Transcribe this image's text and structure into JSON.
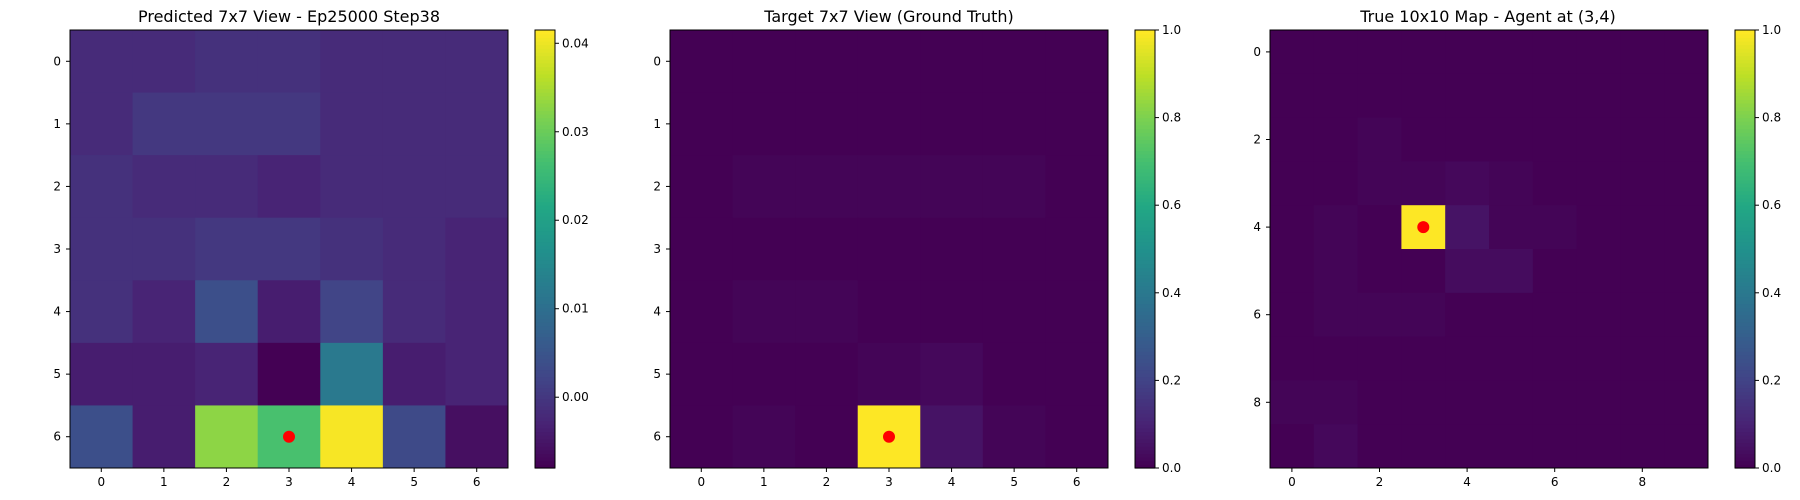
{
  "chart_data": [
    {
      "type": "heatmap",
      "title": "Predicted 7x7 View - Ep25000 Step38",
      "colormap": "viridis",
      "rows": 7,
      "cols": 7,
      "x_ticks": [
        0,
        1,
        2,
        3,
        4,
        5,
        6
      ],
      "y_ticks": [
        0,
        1,
        2,
        3,
        4,
        5,
        6
      ],
      "vmin": -0.008,
      "vmax": 0.0415,
      "colorbar_ticks": [
        {
          "v": 0.04,
          "label": "0.04"
        },
        {
          "v": 0.03,
          "label": "0.03"
        },
        {
          "v": 0.02,
          "label": "0.02"
        },
        {
          "v": 0.01,
          "label": "0.01"
        },
        {
          "v": 0.0,
          "label": "0.00"
        }
      ],
      "values": [
        [
          -0.002,
          -0.002,
          -0.001,
          -0.001,
          -0.002,
          -0.002,
          -0.002
        ],
        [
          -0.002,
          0.0,
          0.0,
          0.0,
          -0.002,
          -0.002,
          -0.002
        ],
        [
          -0.001,
          -0.002,
          -0.002,
          -0.003,
          -0.002,
          -0.002,
          -0.002
        ],
        [
          -0.001,
          -0.001,
          0.0,
          0.0,
          -0.001,
          -0.002,
          -0.003
        ],
        [
          -0.001,
          -0.003,
          0.004,
          -0.004,
          0.002,
          -0.002,
          -0.003
        ],
        [
          -0.004,
          -0.004,
          -0.003,
          -0.008,
          0.012,
          -0.004,
          -0.003
        ],
        [
          0.004,
          -0.004,
          0.033,
          0.027,
          0.041,
          0.003,
          -0.006
        ]
      ],
      "marker": {
        "row": 6,
        "col": 3,
        "color": "#ff0000"
      }
    },
    {
      "type": "heatmap",
      "title": "Target 7x7 View (Ground Truth)",
      "colormap": "viridis",
      "rows": 7,
      "cols": 7,
      "x_ticks": [
        0,
        1,
        2,
        3,
        4,
        5,
        6
      ],
      "y_ticks": [
        0,
        1,
        2,
        3,
        4,
        5,
        6
      ],
      "vmin": 0.0,
      "vmax": 1.0,
      "colorbar_ticks": [
        {
          "v": 1.0,
          "label": "1.0"
        },
        {
          "v": 0.8,
          "label": "0.8"
        },
        {
          "v": 0.6,
          "label": "0.6"
        },
        {
          "v": 0.4,
          "label": "0.4"
        },
        {
          "v": 0.2,
          "label": "0.2"
        },
        {
          "v": 0.0,
          "label": "0.0"
        }
      ],
      "values": [
        [
          0.0,
          0.0,
          0.0,
          0.0,
          0.0,
          0.0,
          0.0
        ],
        [
          0.0,
          0.0,
          0.0,
          0.0,
          0.0,
          0.0,
          0.0
        ],
        [
          0.0,
          0.01,
          0.01,
          0.01,
          0.01,
          0.01,
          0.0
        ],
        [
          0.0,
          0.0,
          0.0,
          0.0,
          0.0,
          0.0,
          0.0
        ],
        [
          0.0,
          0.01,
          0.01,
          0.0,
          0.0,
          0.0,
          0.0
        ],
        [
          0.0,
          0.0,
          0.0,
          0.01,
          0.02,
          0.0,
          0.0
        ],
        [
          0.0,
          0.01,
          0.0,
          1.0,
          0.05,
          0.01,
          0.0
        ]
      ],
      "marker": {
        "row": 6,
        "col": 3,
        "color": "#ff0000"
      }
    },
    {
      "type": "heatmap",
      "title": "True 10x10 Map - Agent at (3,4)",
      "colormap": "viridis",
      "rows": 10,
      "cols": 10,
      "x_ticks": [
        0,
        2,
        4,
        6,
        8
      ],
      "y_ticks": [
        0,
        2,
        4,
        6,
        8
      ],
      "vmin": 0.0,
      "vmax": 1.0,
      "colorbar_ticks": [
        {
          "v": 1.0,
          "label": "1.0"
        },
        {
          "v": 0.8,
          "label": "0.8"
        },
        {
          "v": 0.6,
          "label": "0.6"
        },
        {
          "v": 0.4,
          "label": "0.4"
        },
        {
          "v": 0.2,
          "label": "0.2"
        },
        {
          "v": 0.0,
          "label": "0.0"
        }
      ],
      "values": [
        [
          0.0,
          0.0,
          0.0,
          0.0,
          0.0,
          0.0,
          0.0,
          0.0,
          0.0,
          0.0
        ],
        [
          0.0,
          0.0,
          0.0,
          0.0,
          0.0,
          0.0,
          0.0,
          0.0,
          0.0,
          0.0
        ],
        [
          0.0,
          0.0,
          0.01,
          0.0,
          0.0,
          0.0,
          0.0,
          0.0,
          0.0,
          0.0
        ],
        [
          0.0,
          0.0,
          0.01,
          0.01,
          0.02,
          0.01,
          0.0,
          0.0,
          0.0,
          0.0
        ],
        [
          0.0,
          0.01,
          0.0,
          1.0,
          0.05,
          0.01,
          0.01,
          0.0,
          0.0,
          0.0
        ],
        [
          0.0,
          0.01,
          0.0,
          0.0,
          0.03,
          0.03,
          0.0,
          0.0,
          0.0,
          0.0
        ],
        [
          0.0,
          0.01,
          0.01,
          0.01,
          0.0,
          0.0,
          0.0,
          0.0,
          0.0,
          0.0
        ],
        [
          0.0,
          0.0,
          0.0,
          0.0,
          0.0,
          0.0,
          0.0,
          0.0,
          0.0,
          0.0
        ],
        [
          0.01,
          0.01,
          0.0,
          0.0,
          0.0,
          0.0,
          0.0,
          0.0,
          0.0,
          0.0
        ],
        [
          0.0,
          0.02,
          0.0,
          0.0,
          0.0,
          0.0,
          0.0,
          0.0,
          0.0,
          0.0
        ]
      ],
      "marker": {
        "row": 4,
        "col": 3,
        "color": "#ff0000"
      }
    }
  ]
}
